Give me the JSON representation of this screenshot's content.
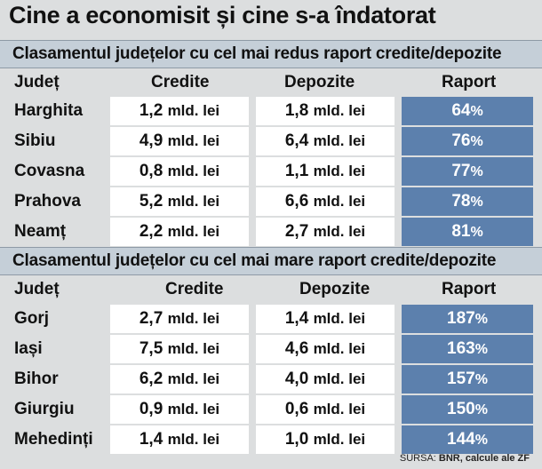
{
  "title": "Cine a economisit și cine s-a îndatorat",
  "chart_data": {
    "type": "table",
    "unit": "mld. lei",
    "percent_sign": "%",
    "columns": [
      "Județ",
      "Credite",
      "Depozite",
      "Raport"
    ],
    "tables": [
      {
        "title": "Clasamentul județelor cu cel mai redus raport credite/depozite",
        "rows": [
          {
            "judet": "Harghita",
            "credite": "1,2",
            "depozite": "1,8",
            "raport": "64"
          },
          {
            "judet": "Sibiu",
            "credite": "4,9",
            "depozite": "6,4",
            "raport": "76"
          },
          {
            "judet": "Covasna",
            "credite": "0,8",
            "depozite": "1,1",
            "raport": "77"
          },
          {
            "judet": "Prahova",
            "credite": "5,2",
            "depozite": "6,6",
            "raport": "78"
          },
          {
            "judet": "Neamț",
            "credite": "2,2",
            "depozite": "2,7",
            "raport": "81"
          }
        ]
      },
      {
        "title": "Clasamentul județelor cu cel mai mare raport credite/depozite",
        "rows": [
          {
            "judet": "Gorj",
            "credite": "2,7",
            "depozite": "1,4",
            "raport": "187"
          },
          {
            "judet": "Iași",
            "credite": "7,5",
            "depozite": "4,6",
            "raport": "163"
          },
          {
            "judet": "Bihor",
            "credite": "6,2",
            "depozite": "4,0",
            "raport": "157"
          },
          {
            "judet": "Giurgiu",
            "credite": "0,9",
            "depozite": "0,6",
            "raport": "150"
          },
          {
            "judet": "Mehedinți",
            "credite": "1,4",
            "depozite": "1,0",
            "raport": "144"
          }
        ]
      }
    ]
  },
  "source": {
    "prefix": "SURSA: ",
    "text": "BNR, calcule ale ZF"
  },
  "colors": {
    "ratio_bg": "#5c80ad",
    "section_bg": "#c5cfd8",
    "page_bg": "#dcdedf"
  }
}
